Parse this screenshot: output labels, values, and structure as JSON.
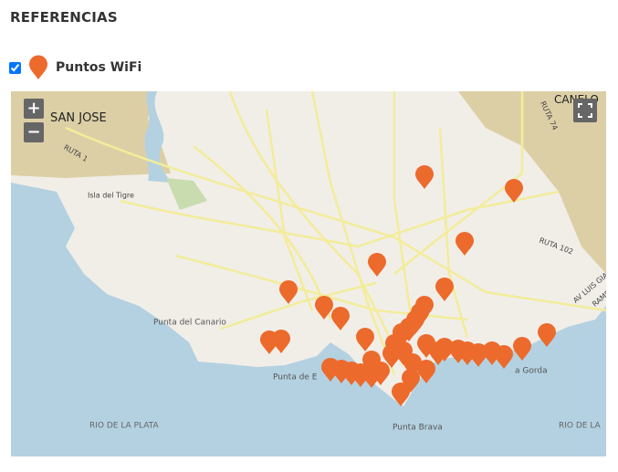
{
  "header": {
    "title": "REFERENCIAS"
  },
  "legend": {
    "label": "Puntos WiFi",
    "checked": true
  },
  "map": {
    "zoom_in": "+",
    "zoom_out": "−",
    "labels": [
      "SAN JOSE",
      "CANELO",
      "RUTA 1",
      "Isla del Tigre",
      "RUTA 74",
      "RUTA 102",
      "AV LUIS GIA",
      "RAMB",
      "Punta del Canario",
      "Punta de E",
      "a Gorda",
      "RIO DE LA PLATA",
      "RIO DE LA",
      "Punta Brava"
    ]
  }
}
